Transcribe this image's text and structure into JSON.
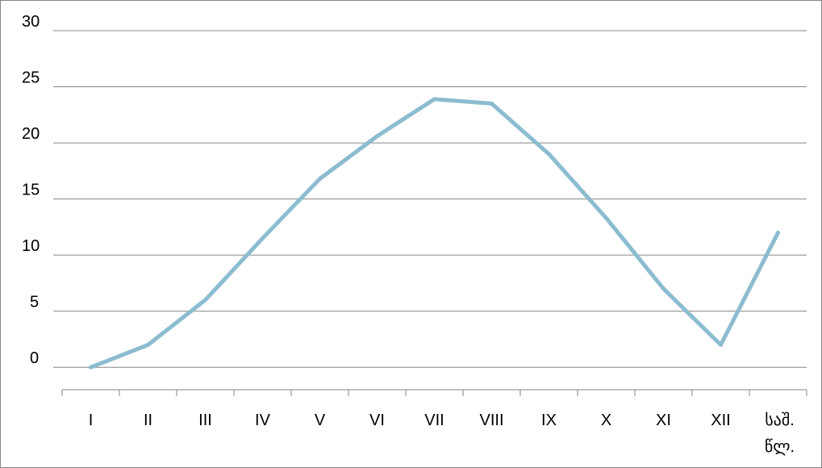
{
  "chart_data": {
    "type": "line",
    "categories": [
      "I",
      "II",
      "III",
      "IV",
      "V",
      "VI",
      "VII",
      "VIII",
      "IX",
      "X",
      "XI",
      "XII",
      "საშ.\nწლ."
    ],
    "series": [
      {
        "values": [
          0,
          2,
          6,
          11.5,
          16.8,
          20.6,
          23.9,
          23.5,
          19,
          13.3,
          7,
          2,
          12
        ]
      }
    ],
    "y_ticks": [
      "0",
      "5",
      "10",
      "15",
      "20",
      "25",
      "30"
    ],
    "ylim": [
      -2,
      30
    ],
    "grid": true,
    "legend": "none",
    "title": "",
    "xlabel": "",
    "ylabel": "",
    "line_color": "#8cbcd0",
    "grid_color": "#868686"
  }
}
